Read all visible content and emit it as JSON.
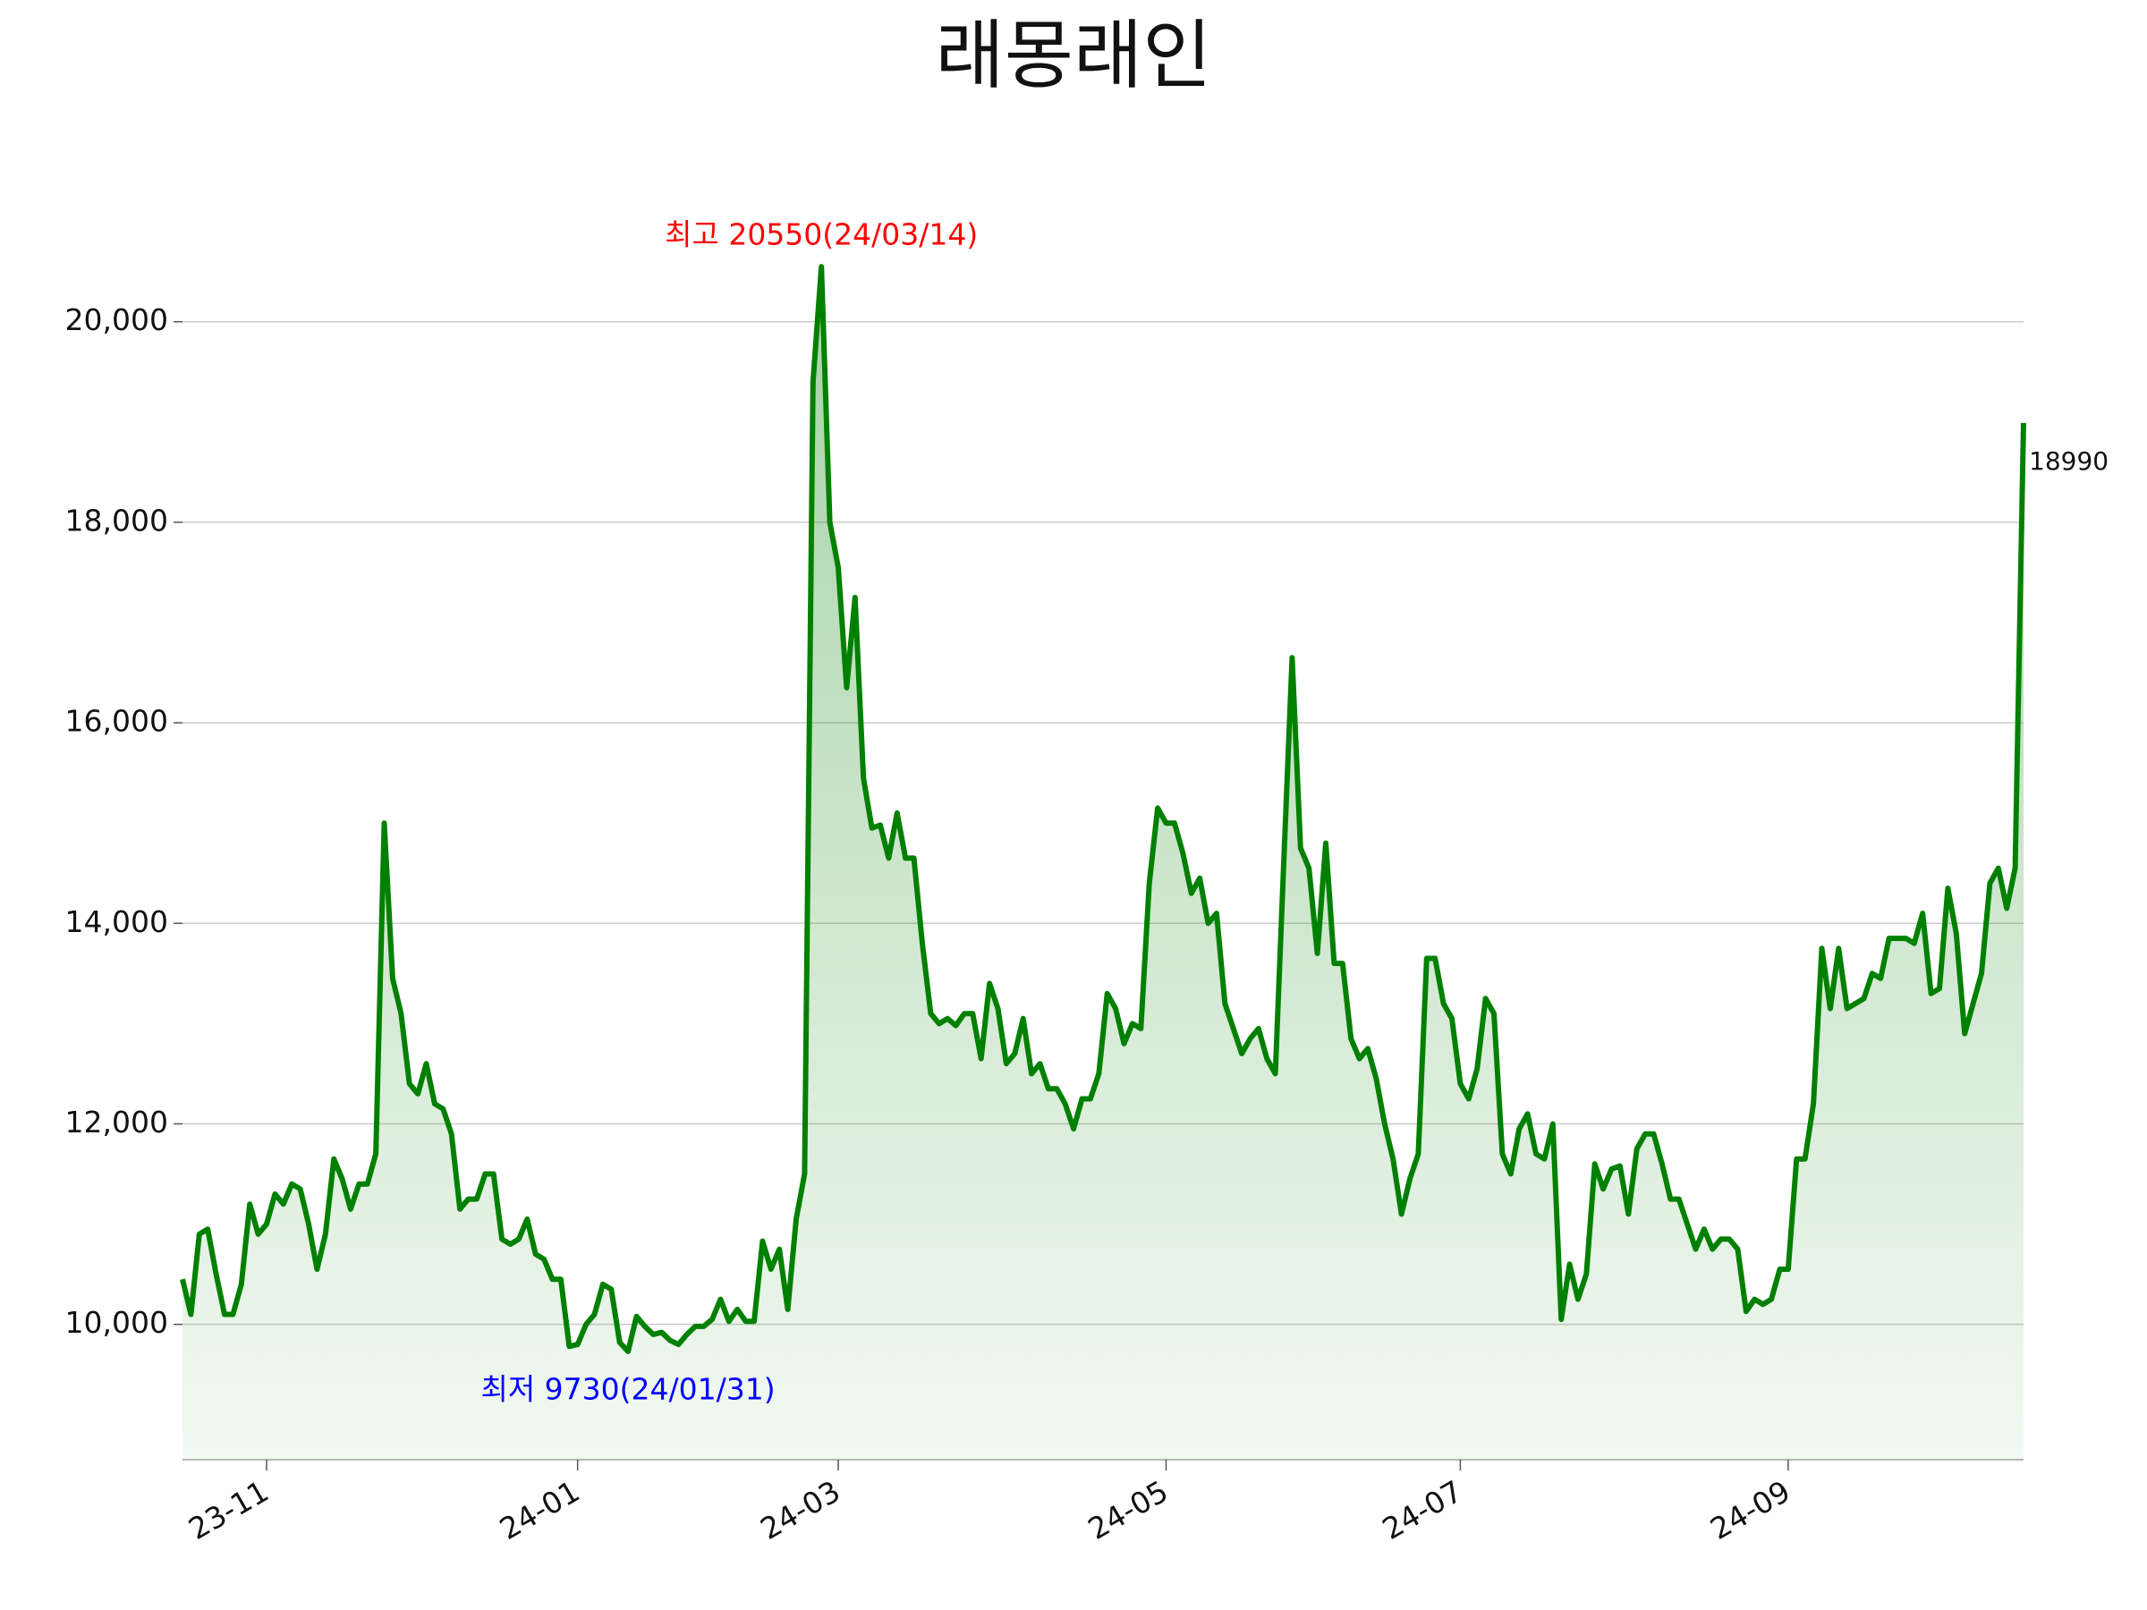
{
  "chart_data": {
    "type": "line",
    "title": "래몽래인",
    "categories": [
      null,
      null,
      null,
      null,
      null,
      null,
      null,
      null,
      null,
      null,
      "23-11",
      null,
      null,
      null,
      null,
      null,
      null,
      null,
      null,
      null,
      null,
      null,
      null,
      null,
      null,
      null,
      null,
      null,
      null,
      null,
      null,
      null,
      null,
      null,
      null,
      null,
      null,
      null,
      null,
      null,
      null,
      null,
      null,
      null,
      null,
      null,
      null,
      "24-01",
      null,
      null,
      null,
      null,
      null,
      null,
      null,
      null,
      null,
      null,
      null,
      null,
      null,
      null,
      null,
      null,
      null,
      null,
      null,
      null,
      null,
      null,
      null,
      null,
      null,
      null,
      null,
      null,
      null,
      null,
      "24-03",
      null,
      null,
      null,
      null,
      null,
      null,
      null,
      null,
      null,
      null,
      null,
      null,
      null,
      null,
      null,
      null,
      null,
      null,
      null,
      null,
      null,
      null,
      null,
      null,
      null,
      null,
      null,
      null,
      null,
      null,
      null,
      null,
      null,
      null,
      null,
      null,
      null,
      null,
      "24-05",
      null,
      null,
      null,
      null,
      null,
      null,
      null,
      null,
      null,
      null,
      null,
      null,
      null,
      null,
      null,
      null,
      null,
      null,
      null,
      null,
      null,
      null,
      null,
      null,
      null,
      null,
      null,
      null,
      null,
      null,
      null,
      null,
      null,
      null,
      "24-07",
      null,
      null,
      null,
      null,
      null,
      null,
      null,
      null,
      null,
      null,
      null,
      null,
      null,
      null,
      null,
      null,
      null,
      null,
      null,
      null,
      null,
      null,
      null,
      null,
      null,
      null,
      null,
      null,
      null,
      null,
      null,
      null,
      null,
      null,
      null,
      null,
      null,
      null,
      "24-09",
      null,
      null,
      null,
      null,
      null,
      null,
      null,
      null,
      null,
      null,
      null,
      null,
      null,
      null,
      null,
      null,
      null,
      null,
      null,
      null,
      null,
      null,
      null,
      null,
      null,
      null,
      null,
      null
    ],
    "series": [
      {
        "color": "#008000",
        "values": [
          10450,
          10100,
          10900,
          10950,
          10500,
          10100,
          10100,
          10400,
          11200,
          10900,
          11000,
          11300,
          11200,
          11400,
          11350,
          11000,
          10550,
          10900,
          11650,
          11450,
          11150,
          11400,
          11400,
          11700,
          15000,
          13450,
          13100,
          12400,
          12300,
          12600,
          12200,
          12150,
          11900,
          11150,
          11250,
          11250,
          11500,
          11500,
          10850,
          10800,
          10850,
          11050,
          10700,
          10650,
          10450,
          10450,
          9780,
          9800,
          10000,
          10100,
          10400,
          10350,
          9820,
          9730,
          10080,
          9980,
          9900,
          9920,
          9840,
          9800,
          9900,
          9980,
          9980,
          10050,
          10250,
          10030,
          10150,
          10030,
          10030,
          10830,
          10550,
          10750,
          10150,
          11050,
          11500,
          19400,
          20550,
          18000,
          17550,
          16350,
          17250,
          15450,
          14950,
          14980,
          14650,
          15100,
          14650,
          14650,
          13800,
          13100,
          13000,
          13050,
          12980,
          13100,
          13100,
          12650,
          13400,
          13150,
          12600,
          12700,
          13050,
          12500,
          12600,
          12350,
          12350,
          12200,
          11950,
          12250,
          12250,
          12500,
          13300,
          13150,
          12800,
          13000,
          12950,
          14400,
          15150,
          15000,
          15000,
          14700,
          14300,
          14450,
          14000,
          14100,
          13200,
          12950,
          12700,
          12850,
          12950,
          12650,
          12500,
          14600,
          16650,
          14750,
          14550,
          13700,
          14800,
          13600,
          13600,
          12850,
          12650,
          12750,
          12450,
          12000,
          11650,
          11100,
          11450,
          11700,
          13650,
          13650,
          13200,
          13050,
          12400,
          12250,
          12550,
          13250,
          13100,
          11700,
          11500,
          11950,
          12100,
          11700,
          11650,
          12000,
          10050,
          10600,
          10250,
          10500,
          11600,
          11350,
          11550,
          11580,
          11100,
          11750,
          11900,
          11900,
          11600,
          11250,
          11250,
          11000,
          10750,
          10950,
          10750,
          10850,
          10850,
          10750,
          10130,
          10250,
          10200,
          10250,
          10550,
          10550,
          11650,
          11650,
          12200,
          13750,
          13150,
          13750,
          13150,
          13200,
          13250,
          13500,
          13450,
          13850,
          13850,
          13850,
          13800,
          14100,
          13300,
          13350,
          14350,
          13900,
          12900,
          13200,
          13500,
          14400,
          14550,
          14150,
          14550,
          18990
        ]
      }
    ],
    "ylim": [
      8650,
      21300
    ],
    "yticks": [
      {
        "value": 10000,
        "label": "10,000"
      },
      {
        "value": 12000,
        "label": "12,000"
      },
      {
        "value": 14000,
        "label": "14,000"
      },
      {
        "value": 16000,
        "label": "16,000"
      },
      {
        "value": 18000,
        "label": "18,000"
      },
      {
        "value": 20000,
        "label": "20,000"
      }
    ],
    "grid": true,
    "annotations": {
      "max": {
        "text": "최고 20550(24/03/14)",
        "color": "#ff0000"
      },
      "min": {
        "text": "최저 9730(24/01/31)",
        "color": "#0000ff"
      }
    }
  }
}
